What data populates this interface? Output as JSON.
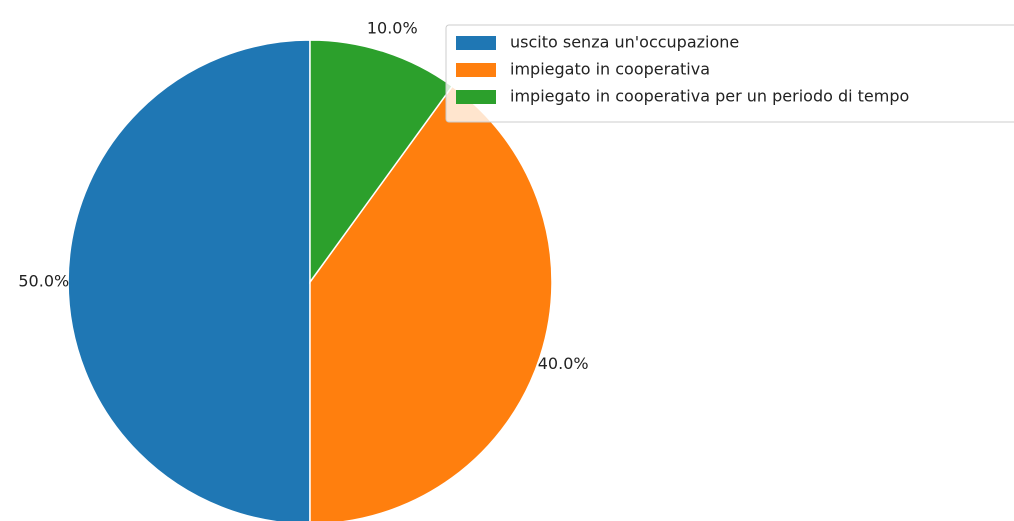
{
  "chart_data": {
    "type": "pie",
    "categories": [
      "uscito senza un'occupazione",
      "impiegato in cooperativa",
      "impiegato in cooperativa per un periodo di tempo"
    ],
    "values": [
      50,
      40,
      10
    ],
    "value_labels": [
      "50.0%",
      "40.0%",
      "10.0%"
    ],
    "colors": [
      "#1f77b4",
      "#ff7f0e",
      "#2ca02c"
    ],
    "legend": "upper right"
  }
}
